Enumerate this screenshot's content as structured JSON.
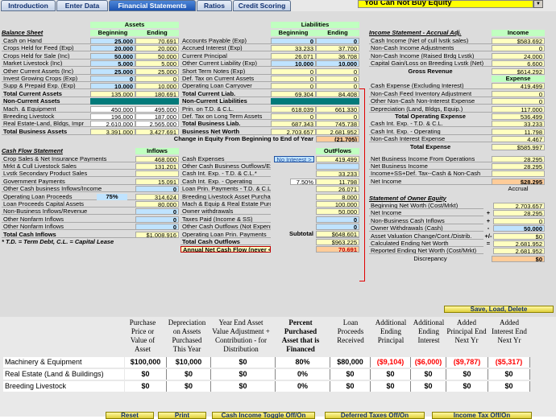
{
  "tabs": [
    "Introduction",
    "Enter Data",
    "Financial Statements",
    "Ratios",
    "Credit Scoring"
  ],
  "banner": "You Can Not Buy Equity",
  "assets_hdr": "Assets",
  "liab_hdr": "Liabilities",
  "income_hdr": "Income",
  "expense_hdr": "Expense",
  "bs_title": "Balance Sheet",
  "beginning": "Beginning",
  "ending": "Ending",
  "left_rows": [
    [
      "Cash on Hand",
      "25,000",
      "70,691"
    ],
    [
      "Crops Held for Feed (Exp)",
      "20,000",
      "20,000"
    ],
    [
      "Crops Held for Sale (Inc)",
      "50,000",
      "50,000"
    ],
    [
      "Market Livestock (Inc)",
      "5,000",
      "5,000"
    ],
    [
      "Other Current Assets (Inc)",
      "25,000",
      "25,000"
    ],
    [
      "Invest Growing Crops (Exp)",
      "0",
      "0"
    ],
    [
      "Supp & Prepaid Exp. (Exp)",
      "10,000",
      "10,000"
    ],
    [
      "Total Current Assets",
      "135,000",
      "180,691"
    ],
    [
      "Non-Current Assets",
      "",
      ""
    ],
    [
      "Mach. & Equipment",
      "450,000",
      "495,000"
    ],
    [
      "Breeding Livestock",
      "196,000",
      "187,000"
    ],
    [
      "Real Estate-Land, Bldgs, Impr",
      "2,610,000",
      "2,565,000"
    ],
    [
      "Total Business Assets",
      "3,391,000",
      "3,427,691"
    ]
  ],
  "mid_rows": [
    [
      "Accounts Payable (Exp)",
      "0",
      "0"
    ],
    [
      "Accrued Interest (Exp)",
      "33,233",
      "37,700"
    ],
    [
      "Current Principal",
      "26,071",
      "36,708"
    ],
    [
      "Other Current Liability (Exp)",
      "10,000",
      "10,000"
    ],
    [
      "Short Term Notes (Exp)",
      "0",
      "0"
    ],
    [
      "Def. Tax on Current Assets",
      "0",
      "0"
    ],
    [
      "Operating Loan Carryover",
      "0",
      "0"
    ],
    [
      "Total Current Liab.",
      "69,304",
      "84,408"
    ],
    [
      "Non-Current Liabilities",
      "",
      ""
    ],
    [
      "Prin. on T.D. & C.L.",
      "618,039",
      "661,330"
    ],
    [
      "Def. Tax on Long Term Assets",
      "0",
      "0"
    ],
    [
      "Total Business Liab.",
      "687,343",
      "745,738"
    ],
    [
      "Business Net Worth",
      "2,703,657",
      "2,681,952"
    ]
  ],
  "equity_change_label": "Change in Equity From Beginning to End of Year",
  "equity_change_value": "(21,705)",
  "is_title": "Income Statement - Accrual Adj.",
  "income_rows": [
    [
      "Cash Income (Net of cull lvstk sales)",
      "$583,692"
    ],
    [
      "Non-Cash Income Adjustments",
      "0"
    ],
    [
      "Non-Cash Income (Raised Brdg Lvstk)",
      "24,000"
    ],
    [
      "Capital Gain/Loss on Breeding Lvstk (Net)",
      "6,600"
    ]
  ],
  "gross_revenue_label": "Gross Revenue",
  "gross_revenue_value": "$614,292",
  "expense_rows": [
    [
      "Cash Expense (Excluding Interest)",
      "419,499"
    ],
    [
      "Non-Cash Feed Inventory Adjustment",
      "0"
    ],
    [
      "Other Non-Cash Non-Interest Expense",
      "0"
    ],
    [
      "Depreciation (Land, Bldgs, Equip.)",
      "117,000"
    ]
  ],
  "total_op_exp_label": "Total Operating Expense",
  "total_op_exp_value": "536,499",
  "int_rows": [
    [
      "Cash Int. Exp. - T.D. & C.L.",
      "33,233"
    ],
    [
      "Cash Int. Exp. - Operating",
      "11,798"
    ],
    [
      "Non-Cash Interest Expense",
      "4,467"
    ]
  ],
  "total_expense_label": "Total Expense",
  "total_expense_value": "$585,997",
  "nbi_rows": [
    [
      "Net Business Income From Operations",
      "28,295"
    ],
    [
      "Net Business Income",
      "28,295"
    ],
    [
      "Income+SS+Def. Tax--Cash & Non-Cash",
      ""
    ],
    [
      "Net Income",
      "$28,295"
    ]
  ],
  "accrual": "Accrual",
  "soe_title": "Statement of Owner Equity",
  "soe_rows": [
    [
      "Beginning Net Worth (Cost/Mrkt)",
      "",
      "2,703,657"
    ],
    [
      "Net Income",
      "+",
      "28,295"
    ],
    [
      "Non-Business Cash Inflows",
      "+",
      "0"
    ],
    [
      "Owner Withdrawals (Cash)",
      "-",
      "50,000"
    ],
    [
      "Asset Valuation Change/Cont./Distrib.",
      "+/-",
      "$0"
    ],
    [
      "Calculated Ending Net Worth",
      "=",
      "2,681,952"
    ],
    [
      "Reported Ending Net Worth (Cost/Mrkt)",
      "",
      "2,681,952"
    ]
  ],
  "discrepancy_label": "Discrepancy",
  "discrepancy_value": "$0",
  "cf_title": "Cash Flow Statement",
  "inflows": "Inflows",
  "outflows": "OutFlows",
  "cf_left": [
    [
      "Crop Sales & Net Insurance Payments",
      "468,000"
    ],
    [
      "Mrkt & Cull Livestock Sales",
      "131,201"
    ],
    [
      "Lvstk Secondary Product Sales",
      ""
    ],
    [
      "Government Payments",
      "15,091"
    ],
    [
      "Other Cash business Inflows/Income",
      "0"
    ],
    [
      "Operating Loan Proceeds",
      "314,624"
    ],
    [
      "Loan Proceeds Capital Assets",
      "80,000"
    ],
    [
      "Non-Business Inflows/Revenue",
      "0"
    ],
    [
      "Other Nonfarm Inflows",
      "0"
    ],
    [
      "Other Nonfarm Inflows",
      "0"
    ],
    [
      "Total Cash Inflows",
      "$1,008,916"
    ]
  ],
  "op_loan_pct": "75%",
  "td_note": "* T.D. = Term Debt, C.L. = Capital Lease",
  "cf_mid": [
    [
      "Cash Expenses",
      "419,499"
    ],
    [
      "Other Cash Business Outflows/Expense",
      ""
    ],
    [
      "Cash Int. Exp. - T.D. & C.L.*",
      "33,233"
    ],
    [
      "Cash Int. Exp. - Operating",
      "11,798"
    ],
    [
      "Loan Prin. Payments - T.D. & C.L.",
      "26,071"
    ],
    [
      "Breeding Livestock Asset Purchases",
      "8,000"
    ],
    [
      "Mach & Equip & Real Estate Purchase",
      "100,000"
    ],
    [
      "Owner withdrawals",
      "50,000"
    ],
    [
      "Taxes Paid (Income & SS)",
      "0"
    ],
    [
      "Other Cash Outflows (Not Expenses)",
      "0"
    ],
    [
      "Operating Loan Prin. Payments",
      "$314,624"
    ],
    [
      "Total Cash Outflows",
      "$963,225"
    ],
    [
      "Annual Net Cash Flow (never < zero)",
      "70,691"
    ]
  ],
  "no_interest": "No Interest >",
  "op_int_pct": "7.50%",
  "subtotal_label": "Subtotal",
  "subtotal_value": "$648,601",
  "save_btn": "Save, Load, Delete",
  "grid_heads": [
    "Purchase Price or Value of Asset",
    "Depreciation on Assets Purchased This Year",
    "Year End Asset Value Adjustment + Contribution - for Distribution",
    "Percent Purchased Asset that is Financed",
    "Loan Proceeds Received",
    "Additional Ending Principal",
    "Additional Ending Interest",
    "Added Principal End Next Yr",
    "Added Interest End Next Yr"
  ],
  "grid_rows": [
    {
      "label": "Machinery & Equipment",
      "vals": [
        "$100,000",
        "$10,000",
        "$0",
        "80%",
        "$80,000",
        "($9,104)",
        "($6,000)",
        "($9,787)",
        "($5,317)"
      ]
    },
    {
      "label": "Real Estate (Land & Buildings)",
      "vals": [
        "$0",
        "$0",
        "$0",
        "0%",
        "$0",
        "$0",
        "$0",
        "$0",
        "$0"
      ]
    },
    {
      "label": "Breeding Livestock",
      "vals": [
        "$0",
        "$0",
        "$0",
        "0%",
        "$0",
        "$0",
        "$0",
        "$0",
        "$0"
      ]
    }
  ],
  "bottom_buttons": [
    "Reset",
    "Print",
    "Cash Income Toggle Off/On",
    "Deferred Taxes Off/On",
    "Income Tax Off/On"
  ],
  "colors": {
    "tab_active": "#1d55b3",
    "teal": "#037a7a",
    "input_blue": "#bfe3ff",
    "total_yellow": "#ffffc0",
    "banner_yellow": "#ffff00",
    "header_green": "#c0ffc0"
  }
}
